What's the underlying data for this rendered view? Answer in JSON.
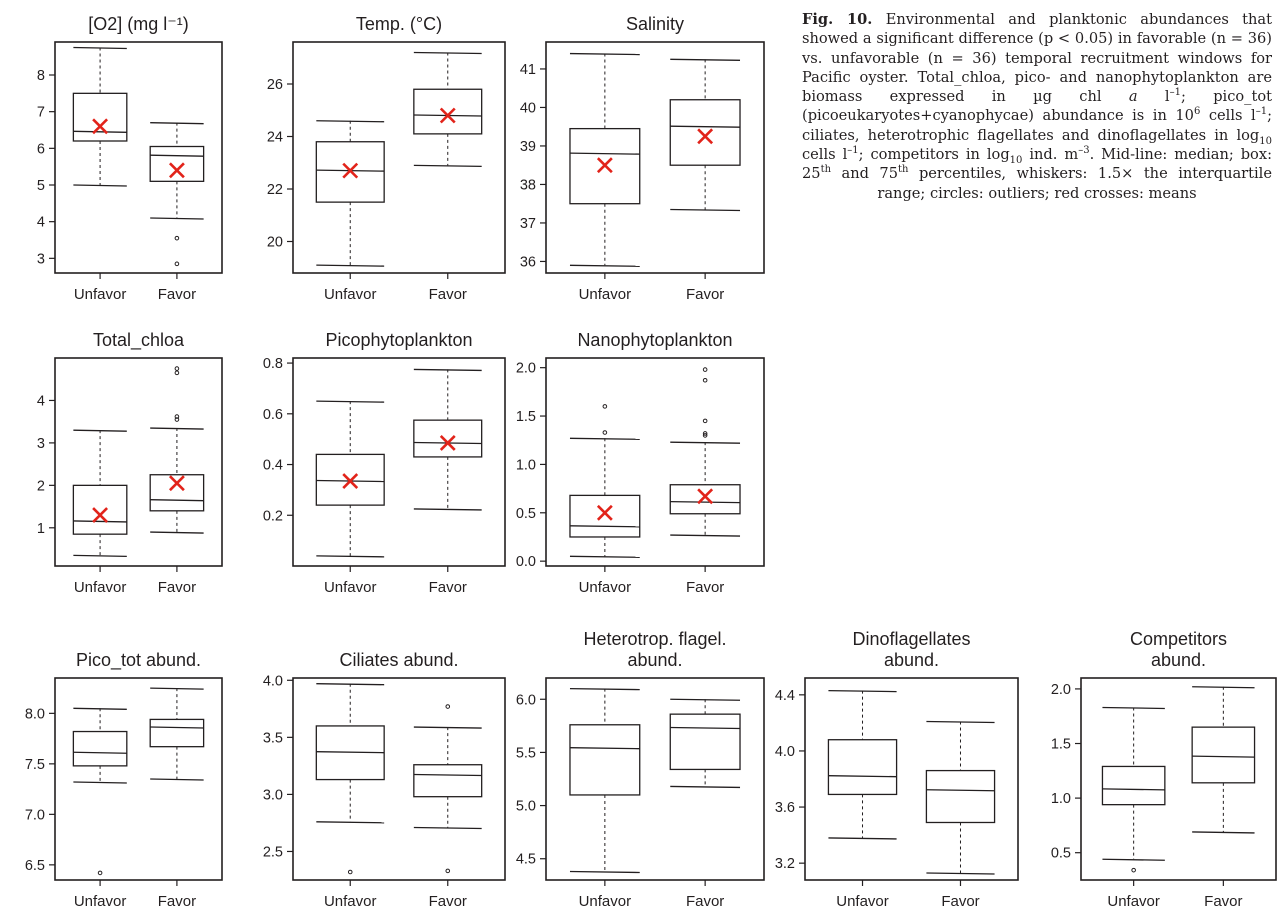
{
  "caption": {
    "label": "Fig. 10.",
    "parts": [
      {
        "t": " Environmental and planktonic abundances that showed a significant difference (p < 0.05) in favorable (n = 36) vs. unfavorable (n = 36) temporal recruitment windows for Pacific oyster. Total_chloa, pico- and nanophytoplankton are biomass expressed in µg chl "
      },
      {
        "t": "a",
        "f": "i"
      },
      {
        "t": " l"
      },
      {
        "t": "–1",
        "f": "sup"
      },
      {
        "t": "; pico_tot (picoeukaryotes+cyanophycae) abundance is in 10"
      },
      {
        "t": "6",
        "f": "sup"
      },
      {
        "t": " cells l"
      },
      {
        "t": "–1",
        "f": "sup"
      },
      {
        "t": "; ciliates, heterotrophic flagellates and dinoflagellates in log"
      },
      {
        "t": "10",
        "f": "sub"
      },
      {
        "t": " cells l"
      },
      {
        "t": "–1",
        "f": "sup"
      },
      {
        "t": "; competitors in log"
      },
      {
        "t": "10",
        "f": "sub"
      },
      {
        "t": " ind. m"
      },
      {
        "t": "–3",
        "f": "sup"
      },
      {
        "t": ". Mid-line: median; box: 25"
      },
      {
        "t": "th",
        "f": "sup"
      },
      {
        "t": " and 75"
      },
      {
        "t": "th",
        "f": "sup"
      },
      {
        "t": " percentiles, whiskers: 1.5× the interquartile range; circles: outliers; red crosses: means"
      }
    ]
  },
  "colors": {
    "axis": "#231f20",
    "mean": "#e2231a",
    "box_fill": "#ffffff"
  },
  "chart_data": [
    {
      "type": "box",
      "title": [
        "[O2] (mg l⁻¹)"
      ],
      "categories": [
        "Unfavor",
        "Favor"
      ],
      "ylim": [
        2.6,
        8.9
      ],
      "yticks": [
        3,
        4,
        5,
        6,
        7,
        8
      ],
      "boxes": [
        {
          "min": 5.0,
          "q1": 6.2,
          "median": 6.45,
          "q3": 7.5,
          "max": 8.75,
          "mean": 6.6,
          "outliers": []
        },
        {
          "min": 4.1,
          "q1": 5.1,
          "median": 5.8,
          "q3": 6.05,
          "max": 6.7,
          "mean": 5.4,
          "outliers": [
            3.55,
            2.85
          ]
        }
      ]
    },
    {
      "type": "box",
      "title": [
        "Temp. (°C)"
      ],
      "categories": [
        "Unfavor",
        "Favor"
      ],
      "ylim": [
        18.8,
        27.6
      ],
      "yticks": [
        20,
        22,
        24,
        26
      ],
      "boxes": [
        {
          "min": 19.1,
          "q1": 21.5,
          "median": 22.7,
          "q3": 23.8,
          "max": 24.6,
          "mean": 22.7,
          "outliers": []
        },
        {
          "min": 22.9,
          "q1": 24.1,
          "median": 24.8,
          "q3": 25.8,
          "max": 27.2,
          "mean": 24.8,
          "outliers": []
        }
      ]
    },
    {
      "type": "box",
      "title": [
        "Salinity"
      ],
      "categories": [
        "Unfavor",
        "Favor"
      ],
      "ylim": [
        35.7,
        41.7
      ],
      "yticks": [
        36,
        37,
        38,
        39,
        40,
        41
      ],
      "boxes": [
        {
          "min": 35.9,
          "q1": 37.5,
          "median": 38.8,
          "q3": 39.45,
          "max": 41.4,
          "mean": 38.5,
          "outliers": []
        },
        {
          "min": 37.35,
          "q1": 38.5,
          "median": 39.5,
          "q3": 40.2,
          "max": 41.25,
          "mean": 39.25,
          "outliers": []
        }
      ]
    },
    {
      "type": "box",
      "title": [
        "Total_chloa"
      ],
      "categories": [
        "Unfavor",
        "Favor"
      ],
      "ylim": [
        0.1,
        5.0
      ],
      "yticks": [
        1,
        2,
        3,
        4
      ],
      "boxes": [
        {
          "min": 0.35,
          "q1": 0.85,
          "median": 1.15,
          "q3": 2.0,
          "max": 3.3,
          "mean": 1.3,
          "outliers": []
        },
        {
          "min": 0.9,
          "q1": 1.4,
          "median": 1.65,
          "q3": 2.25,
          "max": 3.35,
          "mean": 2.05,
          "outliers": [
            3.55,
            3.62,
            4.65,
            4.75
          ]
        }
      ]
    },
    {
      "type": "box",
      "title": [
        "Picophytoplankton"
      ],
      "categories": [
        "Unfavor",
        "Favor"
      ],
      "ylim": [
        0.0,
        0.82
      ],
      "yticks": [
        0.2,
        0.4,
        0.6,
        0.8
      ],
      "boxes": [
        {
          "min": 0.04,
          "q1": 0.24,
          "median": 0.335,
          "q3": 0.44,
          "max": 0.65,
          "mean": 0.335,
          "outliers": []
        },
        {
          "min": 0.225,
          "q1": 0.43,
          "median": 0.485,
          "q3": 0.575,
          "max": 0.775,
          "mean": 0.485,
          "outliers": []
        }
      ]
    },
    {
      "type": "box",
      "title": [
        "Nanophytoplankton"
      ],
      "categories": [
        "Unfavor",
        "Favor"
      ],
      "ylim": [
        -0.05,
        2.1
      ],
      "yticks": [
        0.0,
        0.5,
        1.0,
        1.5,
        2.0
      ],
      "boxes": [
        {
          "min": 0.05,
          "q1": 0.25,
          "median": 0.36,
          "q3": 0.68,
          "max": 1.27,
          "mean": 0.5,
          "outliers": [
            1.33,
            1.6
          ]
        },
        {
          "min": 0.27,
          "q1": 0.49,
          "median": 0.61,
          "q3": 0.79,
          "max": 1.23,
          "mean": 0.67,
          "outliers": [
            1.3,
            1.32,
            1.45,
            1.87,
            1.98
          ]
        }
      ]
    },
    {
      "type": "box",
      "title": [
        "Pico_tot abund."
      ],
      "categories": [
        "Unfavor",
        "Favor"
      ],
      "ylim": [
        6.35,
        8.35
      ],
      "yticks": [
        6.5,
        7.0,
        7.5,
        8.0
      ],
      "boxes": [
        {
          "min": 7.32,
          "q1": 7.48,
          "median": 7.61,
          "q3": 7.82,
          "max": 8.05,
          "mean": null,
          "outliers": [
            6.42
          ]
        },
        {
          "min": 7.35,
          "q1": 7.67,
          "median": 7.86,
          "q3": 7.94,
          "max": 8.25,
          "mean": null,
          "outliers": []
        }
      ]
    },
    {
      "type": "box",
      "title": [
        "Ciliates  abund."
      ],
      "categories": [
        "Unfavor",
        "Favor"
      ],
      "ylim": [
        2.25,
        4.02
      ],
      "yticks": [
        2.5,
        3.0,
        3.5,
        4.0
      ],
      "boxes": [
        {
          "min": 2.76,
          "q1": 3.13,
          "median": 3.37,
          "q3": 3.6,
          "max": 3.97,
          "mean": null,
          "outliers": [
            2.32
          ]
        },
        {
          "min": 2.71,
          "q1": 2.98,
          "median": 3.17,
          "q3": 3.26,
          "max": 3.59,
          "mean": null,
          "outliers": [
            3.77,
            2.33
          ]
        }
      ]
    },
    {
      "type": "box",
      "title": [
        "Heterotrop. flagel.",
        "abund."
      ],
      "categories": [
        "Unfavor",
        "Favor"
      ],
      "ylim": [
        4.3,
        6.2
      ],
      "yticks": [
        4.5,
        5.0,
        5.5,
        6.0
      ],
      "boxes": [
        {
          "min": 4.38,
          "q1": 5.1,
          "median": 5.54,
          "q3": 5.76,
          "max": 6.1,
          "mean": null,
          "outliers": []
        },
        {
          "min": 5.18,
          "q1": 5.34,
          "median": 5.73,
          "q3": 5.86,
          "max": 6.0,
          "mean": null,
          "outliers": []
        }
      ]
    },
    {
      "type": "box",
      "title": [
        "Dinoflagellates",
        "abund."
      ],
      "categories": [
        "Unfavor",
        "Favor"
      ],
      "ylim": [
        3.08,
        4.52
      ],
      "yticks": [
        3.2,
        3.6,
        4.0,
        4.4
      ],
      "boxes": [
        {
          "min": 3.38,
          "q1": 3.69,
          "median": 3.82,
          "q3": 4.08,
          "max": 4.43,
          "mean": null,
          "outliers": []
        },
        {
          "min": 3.13,
          "q1": 3.49,
          "median": 3.72,
          "q3": 3.86,
          "max": 4.21,
          "mean": null,
          "outliers": []
        }
      ]
    },
    {
      "type": "box",
      "title": [
        "Competitors",
        "abund."
      ],
      "categories": [
        "Unfavor",
        "Favor"
      ],
      "ylim": [
        0.25,
        2.1
      ],
      "yticks": [
        0.5,
        1.0,
        1.5,
        2.0
      ],
      "boxes": [
        {
          "min": 0.44,
          "q1": 0.94,
          "median": 1.08,
          "q3": 1.29,
          "max": 1.83,
          "mean": null,
          "outliers": [
            0.34
          ]
        },
        {
          "min": 0.69,
          "q1": 1.14,
          "median": 1.38,
          "q3": 1.65,
          "max": 2.02,
          "mean": null,
          "outliers": []
        }
      ]
    }
  ]
}
